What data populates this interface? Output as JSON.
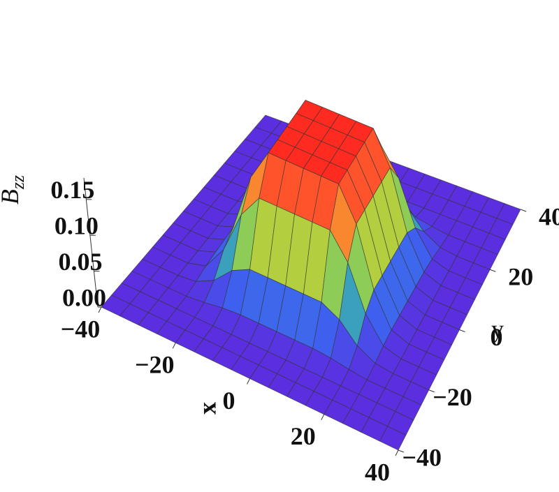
{
  "chart_data": {
    "type": "surface",
    "x": [
      -40,
      -35,
      -30,
      -25,
      -20,
      -15,
      -10,
      -5,
      0,
      5,
      10,
      15,
      20,
      25,
      30,
      35,
      40
    ],
    "y": [
      -40,
      -35,
      -30,
      -25,
      -20,
      -15,
      -10,
      -5,
      0,
      5,
      10,
      15,
      20,
      25,
      30,
      35,
      40
    ],
    "z": [
      [
        0,
        0,
        0,
        0,
        0,
        0,
        0,
        0,
        0,
        0,
        0,
        0,
        0,
        0,
        0,
        0,
        0
      ],
      [
        0,
        0,
        0,
        0,
        0,
        0,
        0,
        0,
        0,
        0,
        0,
        0,
        0,
        0,
        0,
        0,
        0
      ],
      [
        0,
        0,
        0,
        0,
        0,
        0,
        0,
        0,
        0,
        0,
        0,
        0,
        0,
        0,
        0,
        0,
        0
      ],
      [
        0,
        0,
        0,
        0,
        0.003,
        0.007,
        0.009,
        0.009,
        0.009,
        0.009,
        0.009,
        0.007,
        0.003,
        0,
        0,
        0,
        0
      ],
      [
        0,
        0,
        0,
        0.003,
        0.016,
        0.041,
        0.054,
        0.054,
        0.054,
        0.054,
        0.054,
        0.041,
        0.016,
        0.003,
        0,
        0,
        0
      ],
      [
        0,
        0,
        0,
        0.007,
        0.041,
        0.101,
        0.135,
        0.135,
        0.135,
        0.135,
        0.135,
        0.101,
        0.041,
        0.007,
        0,
        0,
        0
      ],
      [
        0,
        0,
        0,
        0.009,
        0.054,
        0.135,
        0.18,
        0.18,
        0.18,
        0.18,
        0.18,
        0.135,
        0.054,
        0.009,
        0,
        0,
        0
      ],
      [
        0,
        0,
        0,
        0.009,
        0.054,
        0.135,
        0.18,
        0.18,
        0.18,
        0.18,
        0.18,
        0.135,
        0.054,
        0.009,
        0,
        0,
        0
      ],
      [
        0,
        0,
        0,
        0.009,
        0.054,
        0.135,
        0.18,
        0.18,
        0.18,
        0.18,
        0.18,
        0.135,
        0.054,
        0.009,
        0,
        0,
        0
      ],
      [
        0,
        0,
        0,
        0.009,
        0.054,
        0.135,
        0.18,
        0.18,
        0.18,
        0.18,
        0.18,
        0.135,
        0.054,
        0.009,
        0,
        0,
        0
      ],
      [
        0,
        0,
        0,
        0.009,
        0.054,
        0.135,
        0.18,
        0.18,
        0.18,
        0.18,
        0.18,
        0.135,
        0.054,
        0.009,
        0,
        0,
        0
      ],
      [
        0,
        0,
        0,
        0.007,
        0.041,
        0.101,
        0.135,
        0.135,
        0.135,
        0.135,
        0.135,
        0.101,
        0.041,
        0.007,
        0,
        0,
        0
      ],
      [
        0,
        0,
        0,
        0.003,
        0.016,
        0.041,
        0.054,
        0.054,
        0.054,
        0.054,
        0.054,
        0.041,
        0.016,
        0.003,
        0,
        0,
        0
      ],
      [
        0,
        0,
        0,
        0,
        0.003,
        0.007,
        0.009,
        0.009,
        0.009,
        0.009,
        0.009,
        0.007,
        0.003,
        0,
        0,
        0,
        0
      ],
      [
        0,
        0,
        0,
        0,
        0,
        0,
        0,
        0,
        0,
        0,
        0,
        0,
        0,
        0,
        0,
        0,
        0
      ],
      [
        0,
        0,
        0,
        0,
        0,
        0,
        0,
        0,
        0,
        0,
        0,
        0,
        0,
        0,
        0,
        0,
        0
      ],
      [
        0,
        0,
        0,
        0,
        0,
        0,
        0,
        0,
        0,
        0,
        0,
        0,
        0,
        0,
        0,
        0,
        0
      ]
    ],
    "xlim": [
      -40,
      40
    ],
    "ylim": [
      -40,
      40
    ],
    "zlim": [
      0,
      0.18
    ],
    "xticks": [
      {
        "value": -40,
        "label": "−40"
      },
      {
        "value": -20,
        "label": "−20"
      },
      0,
      20,
      40
    ],
    "yticks": [
      {
        "value": -40,
        "label": "−40"
      },
      {
        "value": -20,
        "label": "−20"
      },
      0,
      20,
      40
    ],
    "zticks": [
      {
        "value": 0,
        "label": "0.00"
      },
      {
        "value": 0.05,
        "label": "0.05"
      },
      {
        "value": 0.1,
        "label": "0.10"
      },
      {
        "value": 0.15,
        "label": "0.15"
      }
    ],
    "xlabel": "x",
    "ylabel": "y",
    "zlabel": {
      "text": "B",
      "subscript": "zz"
    },
    "colors": [
      "#5b2ee0",
      "#3d63f0",
      "#38c0a0",
      "#a8d040",
      "#f0c030",
      "#ff6030",
      "#ff2a20"
    ]
  }
}
